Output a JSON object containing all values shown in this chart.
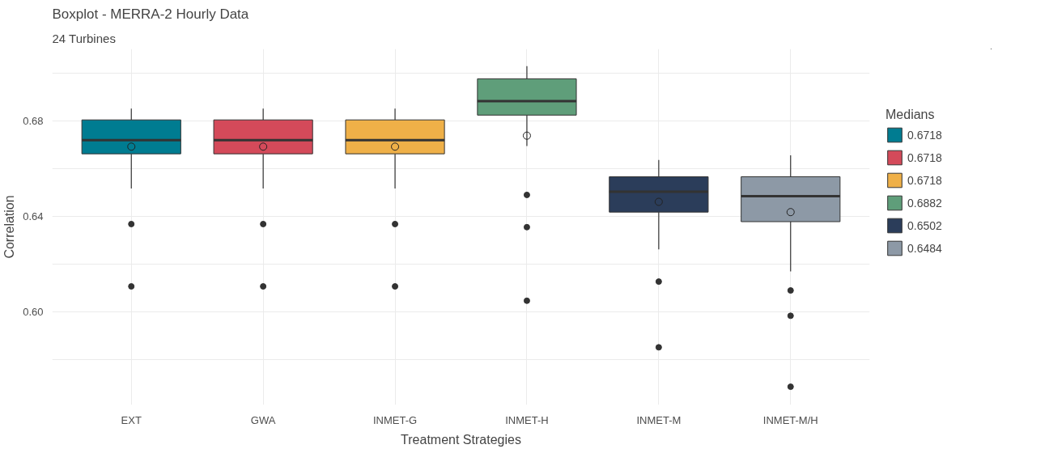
{
  "chart_data": {
    "type": "box",
    "title": "Boxplot - MERRA-2 Hourly Data",
    "subtitle": "24 Turbines",
    "xlabel": "Treatment Strategies",
    "ylabel": "Correlation",
    "legend_title": "Medians",
    "categories": [
      "EXT",
      "GWA",
      "INMET-G",
      "INMET-H",
      "INMET-M",
      "INMET-M/H"
    ],
    "series": [
      {
        "name": "0.6718",
        "color": "#007c91",
        "x": [
          "EXT"
        ],
        "boxes": [
          {
            "low": 0.6516,
            "q1": 0.6661,
            "median": 0.6718,
            "q3": 0.6803,
            "high": 0.685,
            "mean": 0.6691,
            "outliers": [
              0.6367,
              0.6106
            ]
          }
        ]
      },
      {
        "name": "0.6718",
        "color": "#d44a5a",
        "x": [
          "GWA"
        ],
        "boxes": [
          {
            "low": 0.6516,
            "q1": 0.6661,
            "median": 0.6718,
            "q3": 0.6803,
            "high": 0.685,
            "mean": 0.6691,
            "outliers": [
              0.6367,
              0.6106
            ]
          }
        ]
      },
      {
        "name": "0.6718",
        "color": "#efb048",
        "x": [
          "INMET-G"
        ],
        "boxes": [
          {
            "low": 0.6516,
            "q1": 0.6661,
            "median": 0.6718,
            "q3": 0.6803,
            "high": 0.685,
            "mean": 0.6691,
            "outliers": [
              0.6367,
              0.6106
            ]
          }
        ]
      },
      {
        "name": "0.6882",
        "color": "#5f9e7a",
        "x": [
          "INMET-H"
        ],
        "boxes": [
          {
            "low": 0.6694,
            "q1": 0.6823,
            "median": 0.6882,
            "q3": 0.6975,
            "high": 0.7028,
            "mean": 0.6737,
            "outliers": [
              0.6489,
              0.6354,
              0.6046
            ]
          }
        ]
      },
      {
        "name": "0.6502",
        "color": "#2b3d5a",
        "x": [
          "INMET-M"
        ],
        "boxes": [
          {
            "low": 0.6261,
            "q1": 0.6417,
            "median": 0.6502,
            "q3": 0.6565,
            "high": 0.6635,
            "mean": 0.646,
            "outliers": [
              0.6126,
              0.5851
            ]
          }
        ]
      },
      {
        "name": "0.6484",
        "color": "#8d99a6",
        "x": [
          "INMET-M/H"
        ],
        "boxes": [
          {
            "low": 0.6169,
            "q1": 0.6377,
            "median": 0.6484,
            "q3": 0.6565,
            "high": 0.6655,
            "mean": 0.6417,
            "outliers": [
              0.6089,
              0.5983,
              0.5686
            ]
          }
        ]
      }
    ],
    "ylim": [
      0.561,
      0.71
    ],
    "yticks": [
      {
        "value": 0.58,
        "label": null
      },
      {
        "value": 0.6,
        "label": "0.60"
      },
      {
        "value": 0.62,
        "label": null
      },
      0.64,
      {
        "value": 0.66,
        "label": null
      },
      0.68,
      {
        "value": 0.7,
        "label": null
      }
    ],
    "grid": true,
    "legend": "right"
  }
}
